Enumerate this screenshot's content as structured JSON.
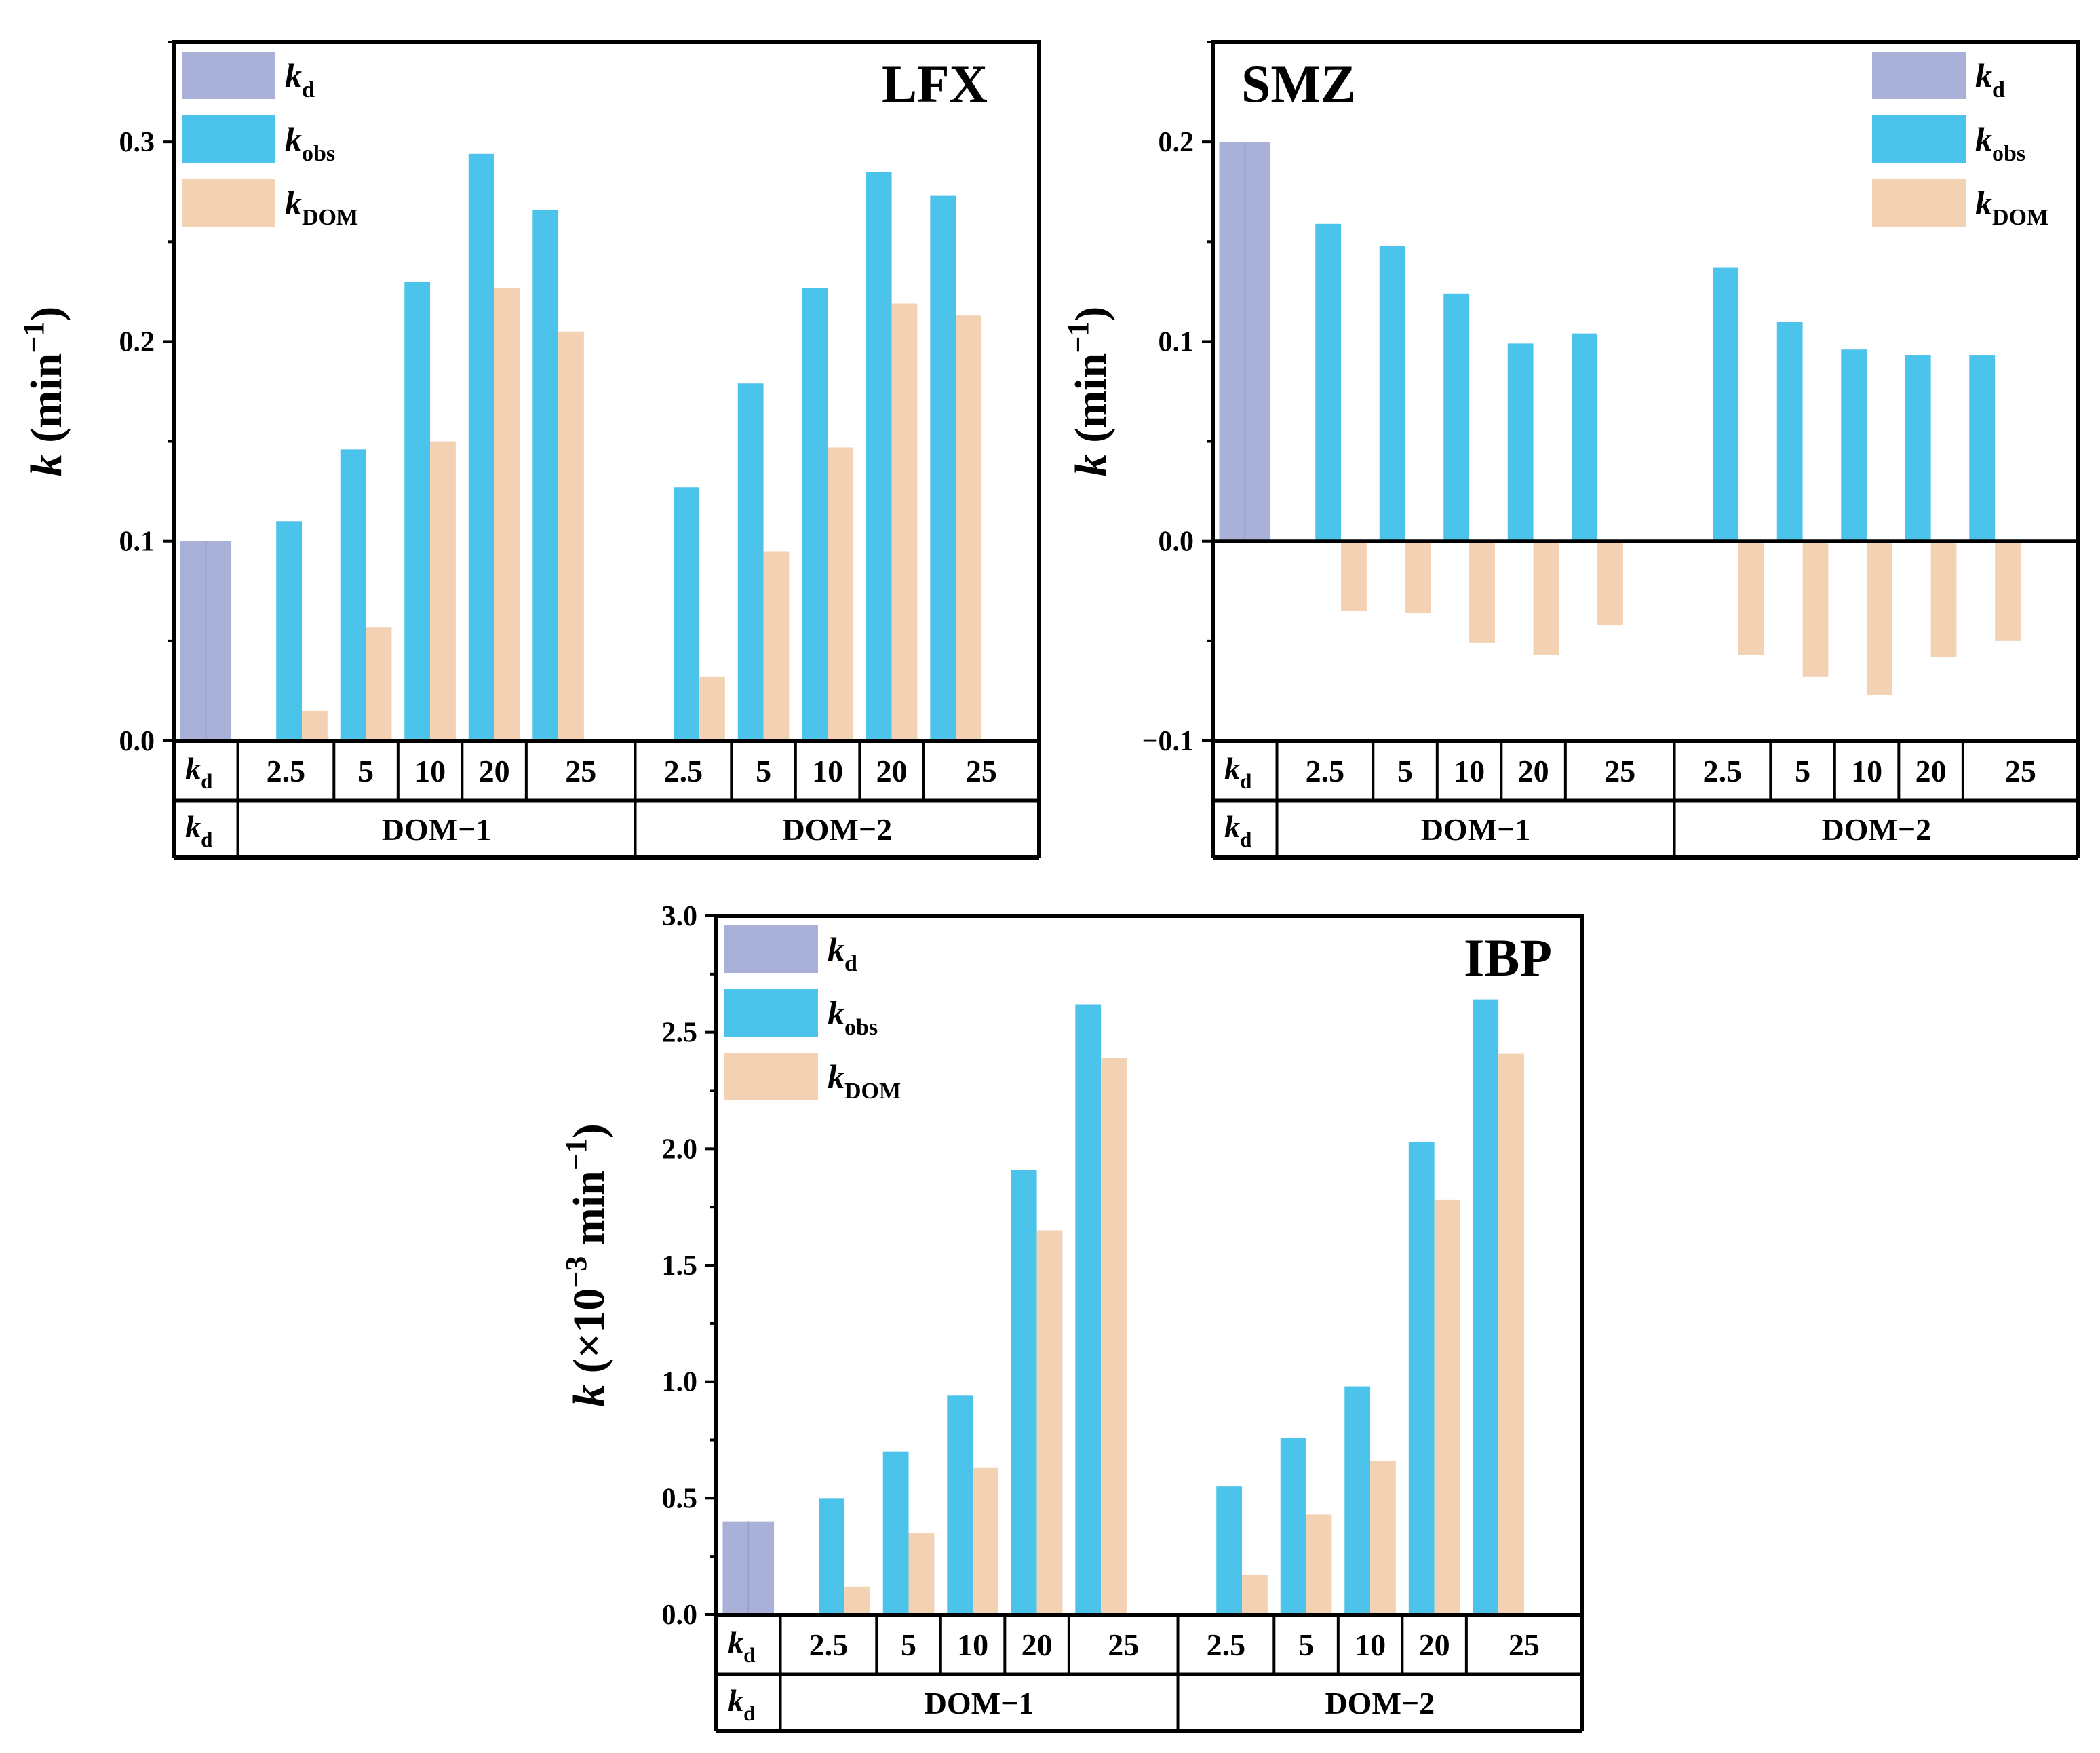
{
  "colors": {
    "kd": "#aab1d8",
    "kobs": "#4cc3ea",
    "kdom": "#f3d2b4",
    "axis": "#000000"
  },
  "legend": {
    "kd": {
      "main": "k",
      "sub": "d"
    },
    "kobs": {
      "main": "k",
      "sub": "obs"
    },
    "kdom": {
      "main": "k",
      "sub": "DOM"
    }
  },
  "chart_data": [
    {
      "type": "bar",
      "title": "LFX",
      "ylabel": {
        "main": "k",
        "rest": " (min",
        "sup": "−1",
        "close": ")"
      },
      "ylim": [
        0,
        0.35
      ],
      "yticks": [
        "0.0",
        "0.1",
        "0.2",
        "0.3"
      ],
      "legend_position": "top-left",
      "categories_row1": [
        "k_d",
        "2.5",
        "5",
        "10",
        "20",
        "25",
        "2.5",
        "5",
        "10",
        "20",
        "25"
      ],
      "categories_row2": [
        "k_d",
        "DOM−1",
        "DOM−2"
      ],
      "kd_value": 0.1,
      "series": [
        {
          "name": "k_obs",
          "values": [
            0.11,
            0.146,
            0.23,
            0.294,
            0.266,
            0.127,
            0.179,
            0.227,
            0.285,
            0.273
          ]
        },
        {
          "name": "k_DOM",
          "values": [
            0.015,
            0.057,
            0.15,
            0.227,
            0.205,
            0.032,
            0.095,
            0.147,
            0.219,
            0.213
          ]
        }
      ]
    },
    {
      "type": "bar",
      "title": "SMZ",
      "ylabel": {
        "main": "k",
        "rest": " (min",
        "sup": "−1",
        "close": ")"
      },
      "ylim": [
        -0.1,
        0.25
      ],
      "yticks": [
        "−0.1",
        "0.0",
        "0.1",
        "0.2"
      ],
      "legend_position": "top-right",
      "categories_row1": [
        "k_d",
        "2.5",
        "5",
        "10",
        "20",
        "25",
        "2.5",
        "5",
        "10",
        "20",
        "25"
      ],
      "categories_row2": [
        "k_d",
        "DOM−1",
        "DOM−2"
      ],
      "kd_value": 0.2,
      "series": [
        {
          "name": "k_obs",
          "values": [
            0.159,
            0.148,
            0.124,
            0.099,
            0.104,
            0.137,
            0.11,
            0.096,
            0.093,
            0.093
          ]
        },
        {
          "name": "k_DOM",
          "values": [
            -0.035,
            -0.036,
            -0.051,
            -0.057,
            -0.042,
            -0.057,
            -0.068,
            -0.077,
            -0.058,
            -0.05
          ]
        }
      ]
    },
    {
      "type": "bar",
      "title": "IBP",
      "ylabel": {
        "main": "k",
        "rest": " (×10",
        "sup": "−3",
        "rest2": " min",
        "sup2": "−1",
        "close": ")"
      },
      "ylim": [
        0,
        3.0
      ],
      "yticks": [
        "0.0",
        "0.5",
        "1.0",
        "1.5",
        "2.0",
        "2.5",
        "3.0"
      ],
      "legend_position": "top-left",
      "categories_row1": [
        "k_d",
        "2.5",
        "5",
        "10",
        "20",
        "25",
        "2.5",
        "5",
        "10",
        "20",
        "25"
      ],
      "categories_row2": [
        "k_d",
        "DOM−1",
        "DOM−2"
      ],
      "kd_value": 0.4,
      "series": [
        {
          "name": "k_obs",
          "values": [
            0.5,
            0.7,
            0.94,
            1.91,
            2.62,
            0.55,
            0.76,
            0.98,
            2.03,
            2.64
          ]
        },
        {
          "name": "k_DOM",
          "values": [
            0.12,
            0.35,
            0.63,
            1.65,
            2.39,
            0.17,
            0.43,
            0.66,
            1.78,
            2.41
          ]
        }
      ]
    }
  ]
}
